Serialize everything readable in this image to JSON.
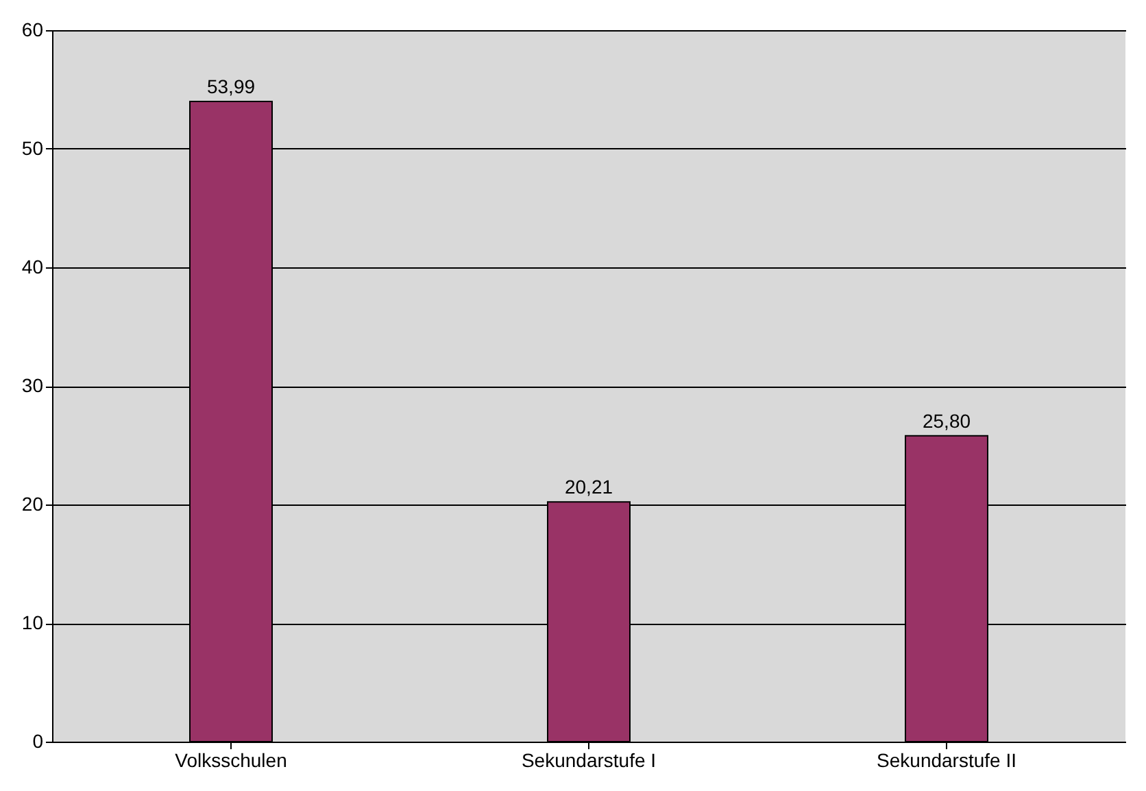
{
  "chart_data": {
    "type": "bar",
    "categories": [
      "Volksschulen",
      "Sekundarstufe I",
      "Sekundarstufe II"
    ],
    "values": [
      53.99,
      20.21,
      25.8
    ],
    "value_labels": [
      "53,99",
      "20,21",
      "25,80"
    ],
    "color": "#993366",
    "ylim": [
      0,
      60
    ],
    "yticks": [
      0,
      10,
      20,
      30,
      40,
      50,
      60
    ],
    "grid": "y"
  }
}
